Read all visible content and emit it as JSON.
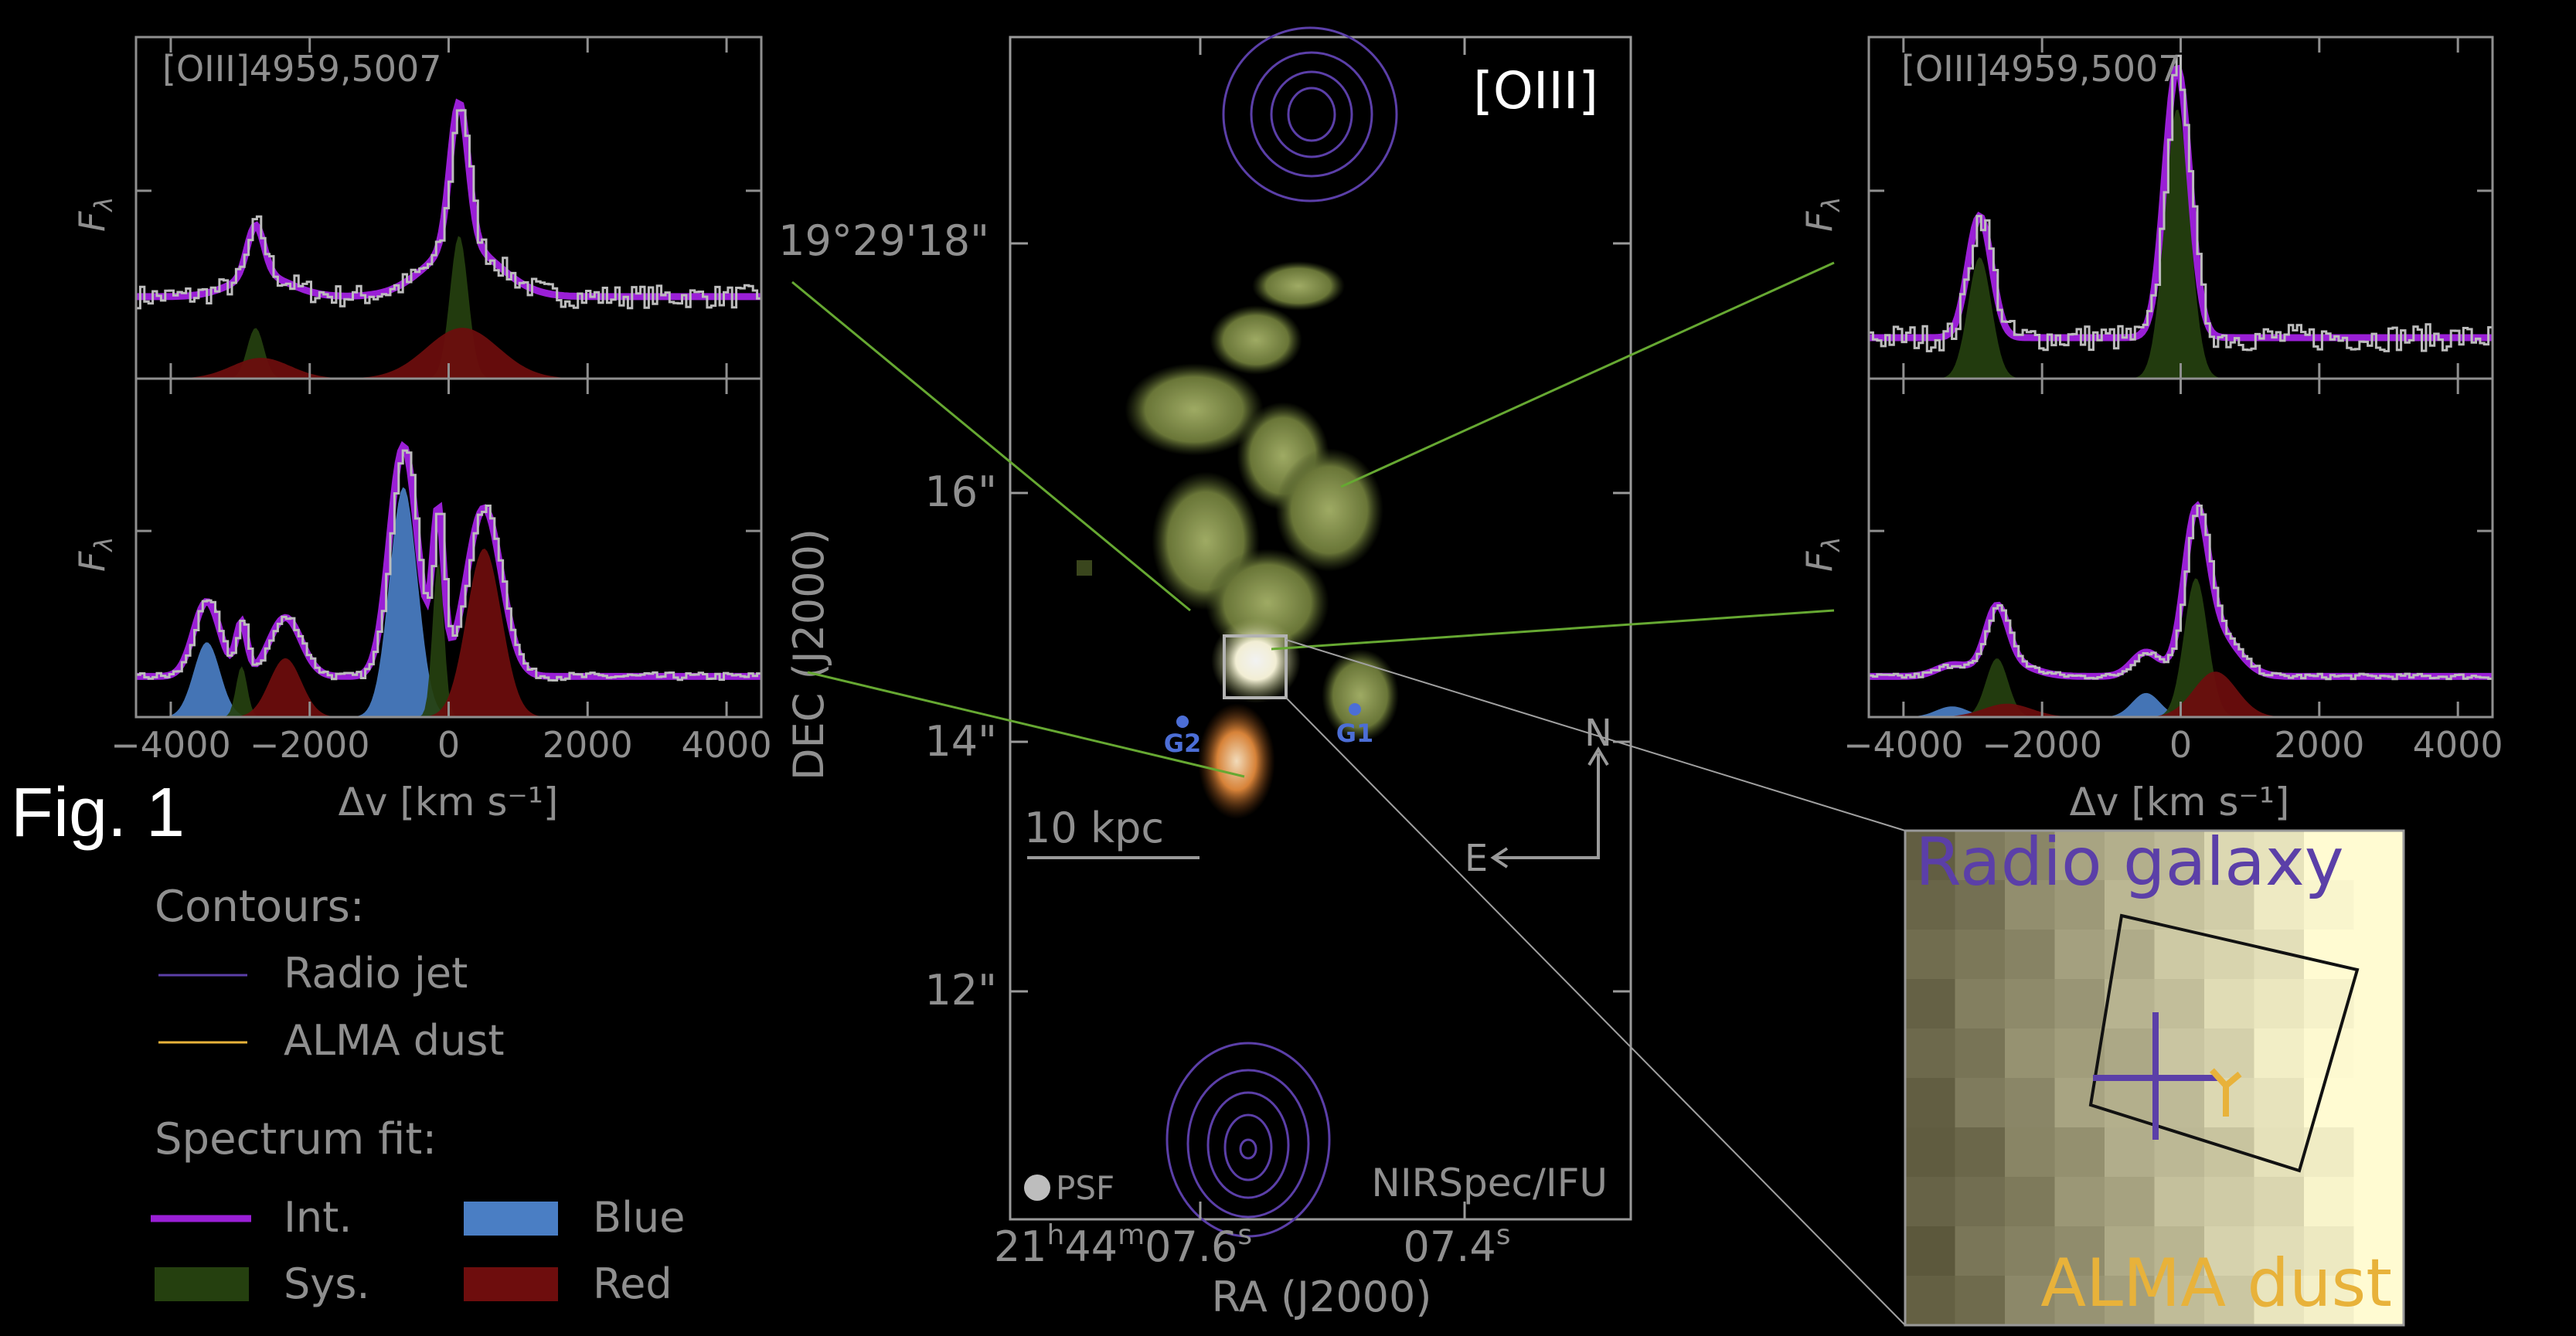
{
  "figure": {
    "label": "Fig. 1",
    "colors": {
      "background": "#000000",
      "int": "#9a1fd6",
      "sys": "#25400f",
      "blue": "#4a7ec4",
      "red": "#6e0d0d",
      "radio_jet": "#5b3fa8",
      "alma_dust": "#e8b23a",
      "data_step": "#bdbdbd",
      "axes": "#8f8f8f",
      "connector": "#66a832"
    }
  },
  "legend": {
    "contours_title": "Contours:",
    "radio_jet": "Radio jet",
    "alma_dust": "ALMA dust",
    "fit_title": "Spectrum fit:",
    "int": "Int.",
    "sys": "Sys.",
    "blue": "Blue",
    "red": "Red"
  },
  "left_panel": {
    "top_label": "[OIII]4959,5007",
    "y_label": "F",
    "y_label_sub": "λ",
    "x_label": "Δv [km s⁻¹]"
  },
  "right_panel": {
    "top_label": "[OIII]4959,5007",
    "y_label": "F",
    "y_label_sub": "λ",
    "x_label": "Δv [km s⁻¹]"
  },
  "image_panel": {
    "title": "[OIII]",
    "instrument": "NIRSpec/IFU",
    "psf": "PSF",
    "scalebar": "10 kpc",
    "compass_n": "N",
    "compass_e": "E",
    "galaxy_labels": [
      "G2",
      "G1"
    ],
    "dec_label": "DEC (J2000)",
    "ra_label": "RA (J2000)",
    "dec_ticks": [
      "19°29'18\"",
      "16\"",
      "14\"",
      "12\""
    ],
    "ra_ticks": [
      "21h44m07.6s",
      "07.4s"
    ]
  },
  "inset": {
    "top_label": "Radio galaxy",
    "bottom_label": "ALMA dust"
  },
  "chart_data": [
    {
      "type": "line",
      "panel": "left-top",
      "title": "[OIII]4959,5007",
      "xlabel": "Δv [km s⁻¹]",
      "ylabel": "Fλ",
      "xlim": [
        -4500,
        4500
      ],
      "xticks": [
        -4000,
        -2000,
        0,
        2000,
        4000
      ],
      "components": [
        {
          "series": "Sys.",
          "center": -2780,
          "sigma": 120,
          "amp": 0.22
        },
        {
          "series": "Sys.",
          "center": 150,
          "sigma": 130,
          "amp": 0.62
        },
        {
          "series": "Red",
          "center": -2700,
          "sigma": 420,
          "amp": 0.09
        },
        {
          "series": "Red",
          "center": 200,
          "sigma": 520,
          "amp": 0.22
        }
      ]
    },
    {
      "type": "line",
      "panel": "left-bottom",
      "xlabel": "Δv [km s⁻¹]",
      "ylabel": "Fλ",
      "xlim": [
        -4500,
        4500
      ],
      "xticks": [
        -4000,
        -2000,
        0,
        2000,
        4000
      ],
      "xtick_labels": [
        "−4000",
        "−2000",
        "0",
        "2000",
        "4000"
      ],
      "components": [
        {
          "series": "Blue",
          "center": -3480,
          "sigma": 190,
          "amp": 0.28
        },
        {
          "series": "Sys.",
          "center": -2980,
          "sigma": 80,
          "amp": 0.19
        },
        {
          "series": "Red",
          "center": -2350,
          "sigma": 230,
          "amp": 0.22
        },
        {
          "series": "Blue",
          "center": -650,
          "sigma": 200,
          "amp": 0.86
        },
        {
          "series": "Sys.",
          "center": -150,
          "sigma": 80,
          "amp": 0.58
        },
        {
          "series": "Red",
          "center": 510,
          "sigma": 250,
          "amp": 0.63
        }
      ]
    },
    {
      "type": "line",
      "panel": "right-top",
      "title": "[OIII]4959,5007",
      "xlabel": "Δv [km s⁻¹]",
      "ylabel": "Fλ",
      "xlim": [
        -4500,
        4500
      ],
      "xticks": [
        -4000,
        -2000,
        0,
        2000,
        4000
      ],
      "components": [
        {
          "series": "Sys.",
          "center": -2900,
          "sigma": 170,
          "amp": 0.45
        },
        {
          "series": "Sys.",
          "center": -50,
          "sigma": 180,
          "amp": 1.0
        }
      ]
    },
    {
      "type": "line",
      "panel": "right-bottom",
      "xlabel": "Δv [km s⁻¹]",
      "ylabel": "Fλ",
      "xlim": [
        -4500,
        4500
      ],
      "xticks": [
        -4000,
        -2000,
        0,
        2000,
        4000
      ],
      "xtick_labels": [
        "−4000",
        "−2000",
        "0",
        "2000",
        "4000"
      ],
      "components": [
        {
          "series": "Blue",
          "center": -3300,
          "sigma": 230,
          "amp": 0.04
        },
        {
          "series": "Sys.",
          "center": -2650,
          "sigma": 160,
          "amp": 0.22
        },
        {
          "series": "Red",
          "center": -2500,
          "sigma": 350,
          "amp": 0.05
        },
        {
          "series": "Blue",
          "center": -500,
          "sigma": 200,
          "amp": 0.09
        },
        {
          "series": "Sys.",
          "center": 220,
          "sigma": 170,
          "amp": 0.52
        },
        {
          "series": "Red",
          "center": 500,
          "sigma": 310,
          "amp": 0.17
        }
      ]
    }
  ]
}
